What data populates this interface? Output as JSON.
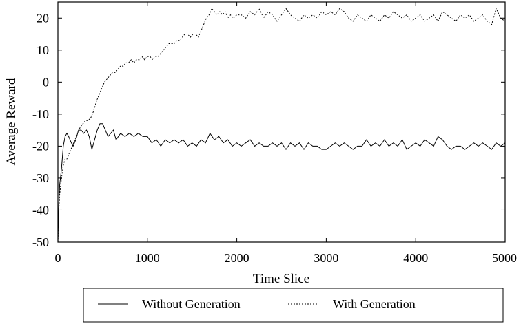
{
  "chart_data": {
    "type": "line",
    "xlabel": "Time Slice",
    "ylabel": "Average Reward",
    "xlim": [
      0,
      5000
    ],
    "ylim": [
      -50,
      25
    ],
    "xticks": [
      0,
      1000,
      2000,
      3000,
      4000,
      5000
    ],
    "yticks": [
      -50,
      -40,
      -30,
      -20,
      -10,
      0,
      10,
      20
    ],
    "x_tick_labels": [
      "0",
      "1000",
      "2000",
      "3000",
      "4000",
      "5000"
    ],
    "y_tick_labels": [
      "-50",
      "-40",
      "-30",
      "-20",
      "-10",
      "0",
      "10",
      "20"
    ],
    "grid": false,
    "legend_position": "bottom",
    "series": [
      {
        "name": "Without Generation",
        "style": "solid",
        "color": "#000000",
        "points": [
          [
            0,
            -50
          ],
          [
            10,
            -38
          ],
          [
            20,
            -32
          ],
          [
            40,
            -27
          ],
          [
            60,
            -20
          ],
          [
            80,
            -17
          ],
          [
            100,
            -16
          ],
          [
            120,
            -17
          ],
          [
            150,
            -19
          ],
          [
            170,
            -20
          ],
          [
            200,
            -18
          ],
          [
            230,
            -15
          ],
          [
            260,
            -15
          ],
          [
            290,
            -16
          ],
          [
            320,
            -15
          ],
          [
            350,
            -17
          ],
          [
            380,
            -21
          ],
          [
            410,
            -18
          ],
          [
            440,
            -15
          ],
          [
            470,
            -13
          ],
          [
            500,
            -13
          ],
          [
            530,
            -15
          ],
          [
            560,
            -17
          ],
          [
            590,
            -16
          ],
          [
            620,
            -15
          ],
          [
            650,
            -18
          ],
          [
            700,
            -16
          ],
          [
            750,
            -17
          ],
          [
            800,
            -16
          ],
          [
            850,
            -17
          ],
          [
            900,
            -16
          ],
          [
            950,
            -17
          ],
          [
            1000,
            -17
          ],
          [
            1050,
            -19
          ],
          [
            1100,
            -18
          ],
          [
            1150,
            -20
          ],
          [
            1200,
            -18
          ],
          [
            1250,
            -19
          ],
          [
            1300,
            -18
          ],
          [
            1350,
            -19
          ],
          [
            1400,
            -18
          ],
          [
            1450,
            -20
          ],
          [
            1500,
            -19
          ],
          [
            1550,
            -20
          ],
          [
            1600,
            -18
          ],
          [
            1650,
            -19
          ],
          [
            1700,
            -16
          ],
          [
            1750,
            -18
          ],
          [
            1800,
            -17
          ],
          [
            1850,
            -19
          ],
          [
            1900,
            -18
          ],
          [
            1950,
            -20
          ],
          [
            2000,
            -19
          ],
          [
            2050,
            -20
          ],
          [
            2100,
            -19
          ],
          [
            2150,
            -18
          ],
          [
            2200,
            -20
          ],
          [
            2250,
            -19
          ],
          [
            2300,
            -20
          ],
          [
            2350,
            -20
          ],
          [
            2400,
            -19
          ],
          [
            2450,
            -20
          ],
          [
            2500,
            -19
          ],
          [
            2550,
            -21
          ],
          [
            2600,
            -19
          ],
          [
            2650,
            -20
          ],
          [
            2700,
            -19
          ],
          [
            2750,
            -21
          ],
          [
            2800,
            -19
          ],
          [
            2850,
            -20
          ],
          [
            2900,
            -20
          ],
          [
            2950,
            -21
          ],
          [
            3000,
            -21
          ],
          [
            3050,
            -20
          ],
          [
            3100,
            -19
          ],
          [
            3150,
            -20
          ],
          [
            3200,
            -19
          ],
          [
            3250,
            -20
          ],
          [
            3300,
            -21
          ],
          [
            3350,
            -20
          ],
          [
            3400,
            -20
          ],
          [
            3450,
            -18
          ],
          [
            3500,
            -20
          ],
          [
            3550,
            -19
          ],
          [
            3600,
            -20
          ],
          [
            3650,
            -18
          ],
          [
            3700,
            -20
          ],
          [
            3750,
            -19
          ],
          [
            3800,
            -20
          ],
          [
            3850,
            -18
          ],
          [
            3900,
            -21
          ],
          [
            3950,
            -20
          ],
          [
            4000,
            -19
          ],
          [
            4050,
            -20
          ],
          [
            4100,
            -18
          ],
          [
            4150,
            -19
          ],
          [
            4200,
            -20
          ],
          [
            4250,
            -17
          ],
          [
            4300,
            -18
          ],
          [
            4350,
            -20
          ],
          [
            4400,
            -21
          ],
          [
            4450,
            -20
          ],
          [
            4500,
            -20
          ],
          [
            4550,
            -21
          ],
          [
            4600,
            -20
          ],
          [
            4650,
            -19
          ],
          [
            4700,
            -20
          ],
          [
            4750,
            -19
          ],
          [
            4800,
            -20
          ],
          [
            4850,
            -21
          ],
          [
            4900,
            -19
          ],
          [
            4950,
            -20
          ],
          [
            5000,
            -19
          ]
        ]
      },
      {
        "name": "With Generation",
        "style": "dashed",
        "color": "#000000",
        "points": [
          [
            0,
            -50
          ],
          [
            10,
            -40
          ],
          [
            20,
            -35
          ],
          [
            40,
            -30
          ],
          [
            60,
            -26
          ],
          [
            80,
            -24
          ],
          [
            100,
            -24
          ],
          [
            130,
            -22
          ],
          [
            160,
            -20
          ],
          [
            190,
            -18
          ],
          [
            220,
            -16
          ],
          [
            250,
            -14
          ],
          [
            280,
            -13
          ],
          [
            310,
            -12
          ],
          [
            340,
            -12
          ],
          [
            370,
            -11
          ],
          [
            400,
            -9
          ],
          [
            430,
            -6
          ],
          [
            460,
            -4
          ],
          [
            490,
            -2
          ],
          [
            520,
            0
          ],
          [
            550,
            1
          ],
          [
            580,
            2
          ],
          [
            610,
            3
          ],
          [
            640,
            3
          ],
          [
            670,
            4
          ],
          [
            700,
            5
          ],
          [
            730,
            5
          ],
          [
            760,
            6
          ],
          [
            790,
            6
          ],
          [
            820,
            7
          ],
          [
            850,
            6
          ],
          [
            880,
            7
          ],
          [
            910,
            7
          ],
          [
            940,
            8
          ],
          [
            970,
            7
          ],
          [
            1000,
            8
          ],
          [
            1030,
            8
          ],
          [
            1060,
            7
          ],
          [
            1090,
            8
          ],
          [
            1120,
            8
          ],
          [
            1150,
            9
          ],
          [
            1180,
            10
          ],
          [
            1210,
            11
          ],
          [
            1240,
            12
          ],
          [
            1270,
            12
          ],
          [
            1300,
            12
          ],
          [
            1330,
            13
          ],
          [
            1360,
            13
          ],
          [
            1390,
            14
          ],
          [
            1420,
            15
          ],
          [
            1450,
            15
          ],
          [
            1480,
            14
          ],
          [
            1510,
            15
          ],
          [
            1540,
            15
          ],
          [
            1570,
            14
          ],
          [
            1600,
            16
          ],
          [
            1630,
            18
          ],
          [
            1660,
            20
          ],
          [
            1690,
            21
          ],
          [
            1720,
            23
          ],
          [
            1750,
            22
          ],
          [
            1780,
            21
          ],
          [
            1810,
            22
          ],
          [
            1840,
            21
          ],
          [
            1870,
            22
          ],
          [
            1900,
            20
          ],
          [
            1930,
            21
          ],
          [
            1960,
            20
          ],
          [
            2000,
            21
          ],
          [
            2050,
            21
          ],
          [
            2100,
            20
          ],
          [
            2150,
            22
          ],
          [
            2200,
            21
          ],
          [
            2250,
            23
          ],
          [
            2300,
            20
          ],
          [
            2350,
            22
          ],
          [
            2400,
            21
          ],
          [
            2450,
            19
          ],
          [
            2500,
            21
          ],
          [
            2550,
            23
          ],
          [
            2600,
            21
          ],
          [
            2650,
            20
          ],
          [
            2700,
            19
          ],
          [
            2750,
            21
          ],
          [
            2800,
            20
          ],
          [
            2850,
            21
          ],
          [
            2900,
            20
          ],
          [
            2950,
            22
          ],
          [
            3000,
            21
          ],
          [
            3050,
            22
          ],
          [
            3100,
            21
          ],
          [
            3150,
            23
          ],
          [
            3200,
            22
          ],
          [
            3250,
            20
          ],
          [
            3300,
            19
          ],
          [
            3350,
            21
          ],
          [
            3400,
            20
          ],
          [
            3450,
            19
          ],
          [
            3500,
            21
          ],
          [
            3550,
            20
          ],
          [
            3600,
            19
          ],
          [
            3650,
            21
          ],
          [
            3700,
            20
          ],
          [
            3750,
            22
          ],
          [
            3800,
            21
          ],
          [
            3850,
            20
          ],
          [
            3900,
            21
          ],
          [
            3950,
            19
          ],
          [
            4000,
            20
          ],
          [
            4050,
            21
          ],
          [
            4100,
            19
          ],
          [
            4150,
            20
          ],
          [
            4200,
            21
          ],
          [
            4250,
            19
          ],
          [
            4300,
            22
          ],
          [
            4350,
            21
          ],
          [
            4400,
            20
          ],
          [
            4450,
            19
          ],
          [
            4500,
            21
          ],
          [
            4550,
            20
          ],
          [
            4600,
            21
          ],
          [
            4650,
            19
          ],
          [
            4700,
            20
          ],
          [
            4750,
            21
          ],
          [
            4800,
            19
          ],
          [
            4850,
            18
          ],
          [
            4900,
            23
          ],
          [
            4950,
            20
          ],
          [
            5000,
            19
          ]
        ]
      }
    ]
  },
  "legend": {
    "items": [
      {
        "label": "Without Generation"
      },
      {
        "label": "With Generation"
      }
    ]
  }
}
